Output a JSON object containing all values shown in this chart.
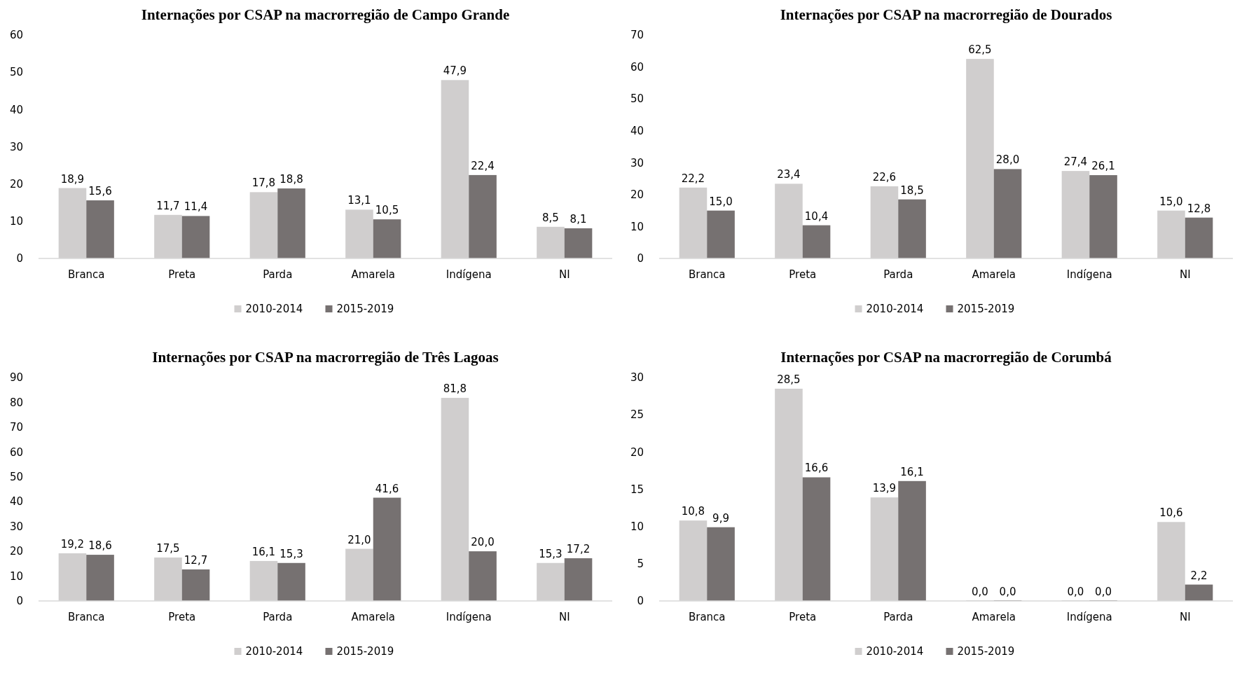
{
  "chart_data": [
    {
      "type": "bar",
      "title": "Internações por CSAP na macrorregião de Campo Grande",
      "categories": [
        "Branca",
        "Preta",
        "Parda",
        "Amarela",
        "Indígena",
        "NI"
      ],
      "ylim": [
        0,
        60
      ],
      "yticks": [
        0,
        10,
        20,
        30,
        40,
        50,
        60
      ],
      "grid": false,
      "legend": "bottom",
      "series": [
        {
          "name": "2010-2014",
          "color": "#d0cece",
          "values": [
            18.9,
            11.7,
            17.8,
            13.1,
            47.9,
            8.5
          ],
          "value_labels": [
            "18,9",
            "11,7",
            "17,8",
            "13,1",
            "47,9",
            "8,5"
          ]
        },
        {
          "name": "2015-2019",
          "color": "#767171",
          "values": [
            15.6,
            11.4,
            18.8,
            10.5,
            22.4,
            8.1
          ],
          "value_labels": [
            "15,6",
            "11,4",
            "18,8",
            "10,5",
            "22,4",
            "8,1"
          ]
        }
      ]
    },
    {
      "type": "bar",
      "title": "Internações por CSAP na macrorregião de Dourados",
      "categories": [
        "Branca",
        "Preta",
        "Parda",
        "Amarela",
        "Indígena",
        "NI"
      ],
      "ylim": [
        0,
        70
      ],
      "yticks": [
        0,
        10,
        20,
        30,
        40,
        50,
        60,
        70
      ],
      "grid": false,
      "legend": "bottom",
      "series": [
        {
          "name": "2010-2014",
          "color": "#d0cece",
          "values": [
            22.2,
            23.4,
            22.6,
            62.5,
            27.4,
            15.0
          ],
          "value_labels": [
            "22,2",
            "23,4",
            "22,6",
            "62,5",
            "27,4",
            "15,0"
          ]
        },
        {
          "name": "2015-2019",
          "color": "#767171",
          "values": [
            15.0,
            10.4,
            18.5,
            28.0,
            26.1,
            12.8
          ],
          "value_labels": [
            "15,0",
            "10,4",
            "18,5",
            "28,0",
            "26,1",
            "12,8"
          ]
        }
      ]
    },
    {
      "type": "bar",
      "title": "Internações por CSAP na macrorregião de Três Lagoas",
      "categories": [
        "Branca",
        "Preta",
        "Parda",
        "Amarela",
        "Indígena",
        "NI"
      ],
      "ylim": [
        0,
        90
      ],
      "yticks": [
        0,
        10,
        20,
        30,
        40,
        50,
        60,
        70,
        80,
        90
      ],
      "grid": false,
      "legend": "bottom",
      "series": [
        {
          "name": "2010-2014",
          "color": "#d0cece",
          "values": [
            19.2,
            17.5,
            16.1,
            21.0,
            81.8,
            15.3
          ],
          "value_labels": [
            "19,2",
            "17,5",
            "16,1",
            "21,0",
            "81,8",
            "15,3"
          ]
        },
        {
          "name": "2015-2019",
          "color": "#767171",
          "values": [
            18.6,
            12.7,
            15.3,
            41.6,
            20.0,
            17.2
          ],
          "value_labels": [
            "18,6",
            "12,7",
            "15,3",
            "41,6",
            "20,0",
            "17,2"
          ]
        }
      ]
    },
    {
      "type": "bar",
      "title": "Internações por CSAP na macrorregião de Corumbá",
      "categories": [
        "Branca",
        "Preta",
        "Parda",
        "Amarela",
        "Indígena",
        "NI"
      ],
      "ylim": [
        0,
        30
      ],
      "yticks": [
        0,
        5,
        10,
        15,
        20,
        25,
        30
      ],
      "grid": false,
      "legend": "bottom",
      "series": [
        {
          "name": "2010-2014",
          "color": "#d0cece",
          "values": [
            10.8,
            28.5,
            13.9,
            0,
            0,
            10.6
          ],
          "value_labels": [
            "10,8",
            "28,5",
            "13,9",
            "0,0",
            "0,0",
            "10,6"
          ]
        },
        {
          "name": "2015-2019",
          "color": "#767171",
          "values": [
            9.9,
            16.6,
            16.1,
            0,
            0,
            2.2
          ],
          "value_labels": [
            "9,9",
            "16,6",
            "16,1",
            "0,0",
            "0,0",
            "2,2"
          ]
        }
      ]
    }
  ]
}
